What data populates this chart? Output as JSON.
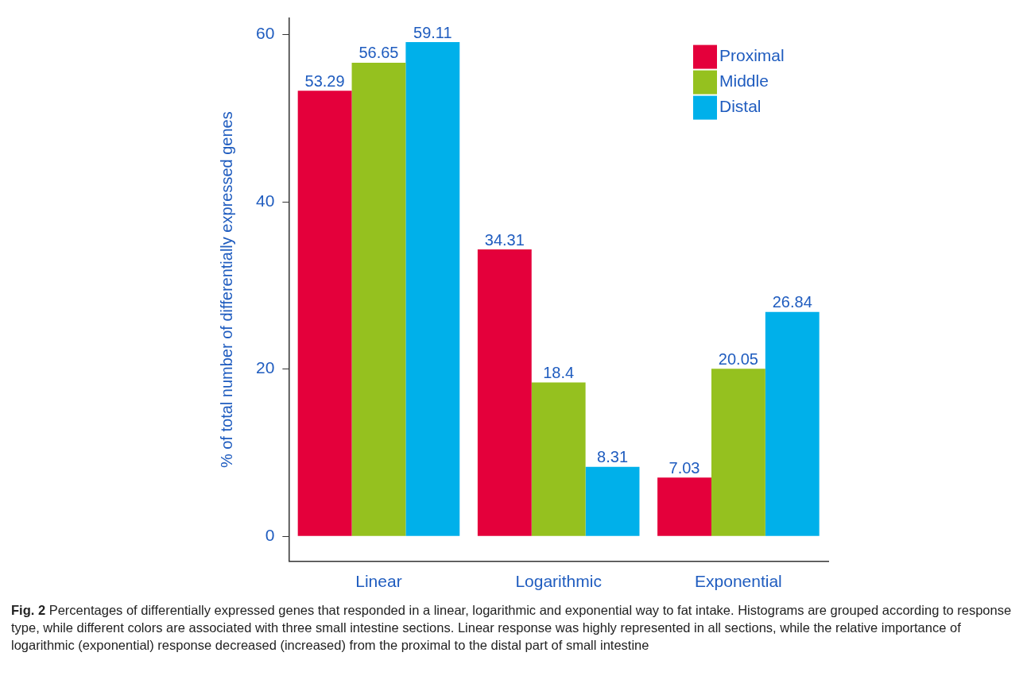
{
  "chart_data": {
    "type": "bar",
    "ylabel": "% of total number of differentially expressed genes",
    "categories": [
      "Linear",
      "Logarithmic",
      "Exponential"
    ],
    "series": [
      {
        "name": "Proximal",
        "color": "#e4003b",
        "values": [
          53.29,
          34.31,
          7.03
        ]
      },
      {
        "name": "Middle",
        "color": "#95c11f",
        "values": [
          56.65,
          18.4,
          20.05
        ]
      },
      {
        "name": "Distal",
        "color": "#00b0ea",
        "values": [
          59.11,
          8.31,
          26.84
        ]
      }
    ],
    "ylim": [
      -3,
      62
    ],
    "yticks": [
      0,
      20,
      40,
      60
    ],
    "grid": false,
    "legend": "top right",
    "data_labels": true,
    "annotations": [
      "Fig. 2",
      "Percentages of differentially expressed genes that responded in a linear, logarithmic and exponential way to fat intake. Histograms are grouped according to response type, while different colors are associated with three small intestine sections. Linear response was highly represented in all sections, while the relative importance of logarithmic (exponential) response decreased (increased) from the proximal to the distal part of small intestine"
    ]
  }
}
